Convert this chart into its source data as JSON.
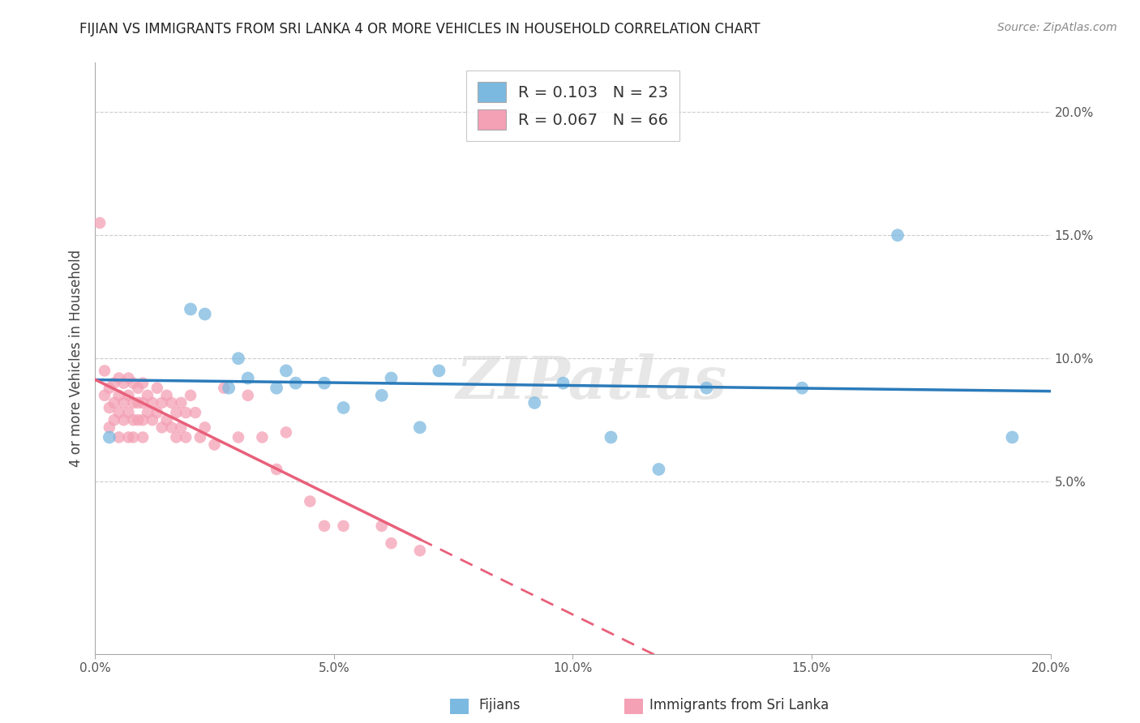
{
  "title": "FIJIAN VS IMMIGRANTS FROM SRI LANKA 4 OR MORE VEHICLES IN HOUSEHOLD CORRELATION CHART",
  "source": "Source: ZipAtlas.com",
  "ylabel": "4 or more Vehicles in Household",
  "xlabel_fijians": "Fijians",
  "xlabel_immigrants": "Immigrants from Sri Lanka",
  "xlim": [
    0.0,
    0.2
  ],
  "ylim": [
    -0.02,
    0.22
  ],
  "xticks": [
    0.0,
    0.05,
    0.1,
    0.15,
    0.2
  ],
  "yticks": [
    0.05,
    0.1,
    0.15,
    0.2
  ],
  "ytick_labels": [
    "5.0%",
    "10.0%",
    "15.0%",
    "20.0%"
  ],
  "xtick_labels": [
    "0.0%",
    "5.0%",
    "10.0%",
    "15.0%",
    "20.0%"
  ],
  "fijian_color": "#7cb9e0",
  "immigrant_color": "#f4a0b5",
  "fijian_line_color": "#2b7bba",
  "immigrant_line_color": "#e8607a",
  "fijian_R": 0.103,
  "fijian_N": 23,
  "immigrant_R": 0.067,
  "immigrant_N": 66,
  "legend_R_color": "#1a6faf",
  "watermark": "ZIPatlas",
  "fijian_x": [
    0.003,
    0.02,
    0.023,
    0.028,
    0.03,
    0.032,
    0.038,
    0.04,
    0.042,
    0.048,
    0.052,
    0.06,
    0.062,
    0.068,
    0.072,
    0.092,
    0.098,
    0.108,
    0.118,
    0.128,
    0.148,
    0.168,
    0.192
  ],
  "fijian_y": [
    0.068,
    0.12,
    0.118,
    0.088,
    0.1,
    0.092,
    0.088,
    0.095,
    0.09,
    0.09,
    0.08,
    0.085,
    0.092,
    0.072,
    0.095,
    0.082,
    0.09,
    0.068,
    0.055,
    0.088,
    0.088,
    0.15,
    0.068
  ],
  "immigrant_x": [
    0.001,
    0.002,
    0.002,
    0.003,
    0.003,
    0.003,
    0.004,
    0.004,
    0.004,
    0.005,
    0.005,
    0.005,
    0.005,
    0.006,
    0.006,
    0.006,
    0.007,
    0.007,
    0.007,
    0.007,
    0.008,
    0.008,
    0.008,
    0.008,
    0.009,
    0.009,
    0.009,
    0.01,
    0.01,
    0.01,
    0.01,
    0.011,
    0.011,
    0.012,
    0.012,
    0.013,
    0.013,
    0.014,
    0.014,
    0.015,
    0.015,
    0.016,
    0.016,
    0.017,
    0.017,
    0.018,
    0.018,
    0.019,
    0.019,
    0.02,
    0.021,
    0.022,
    0.023,
    0.025,
    0.027,
    0.03,
    0.032,
    0.035,
    0.038,
    0.04,
    0.045,
    0.048,
    0.052,
    0.06,
    0.062,
    0.068
  ],
  "immigrant_y": [
    0.155,
    0.095,
    0.085,
    0.088,
    0.08,
    0.072,
    0.09,
    0.082,
    0.075,
    0.092,
    0.085,
    0.078,
    0.068,
    0.09,
    0.082,
    0.075,
    0.092,
    0.085,
    0.078,
    0.068,
    0.09,
    0.082,
    0.075,
    0.068,
    0.088,
    0.082,
    0.075,
    0.09,
    0.082,
    0.075,
    0.068,
    0.085,
    0.078,
    0.082,
    0.075,
    0.088,
    0.078,
    0.082,
    0.072,
    0.085,
    0.075,
    0.082,
    0.072,
    0.078,
    0.068,
    0.082,
    0.072,
    0.078,
    0.068,
    0.085,
    0.078,
    0.068,
    0.072,
    0.065,
    0.088,
    0.068,
    0.085,
    0.068,
    0.055,
    0.07,
    0.042,
    0.032,
    0.032,
    0.032,
    0.025,
    0.022
  ]
}
